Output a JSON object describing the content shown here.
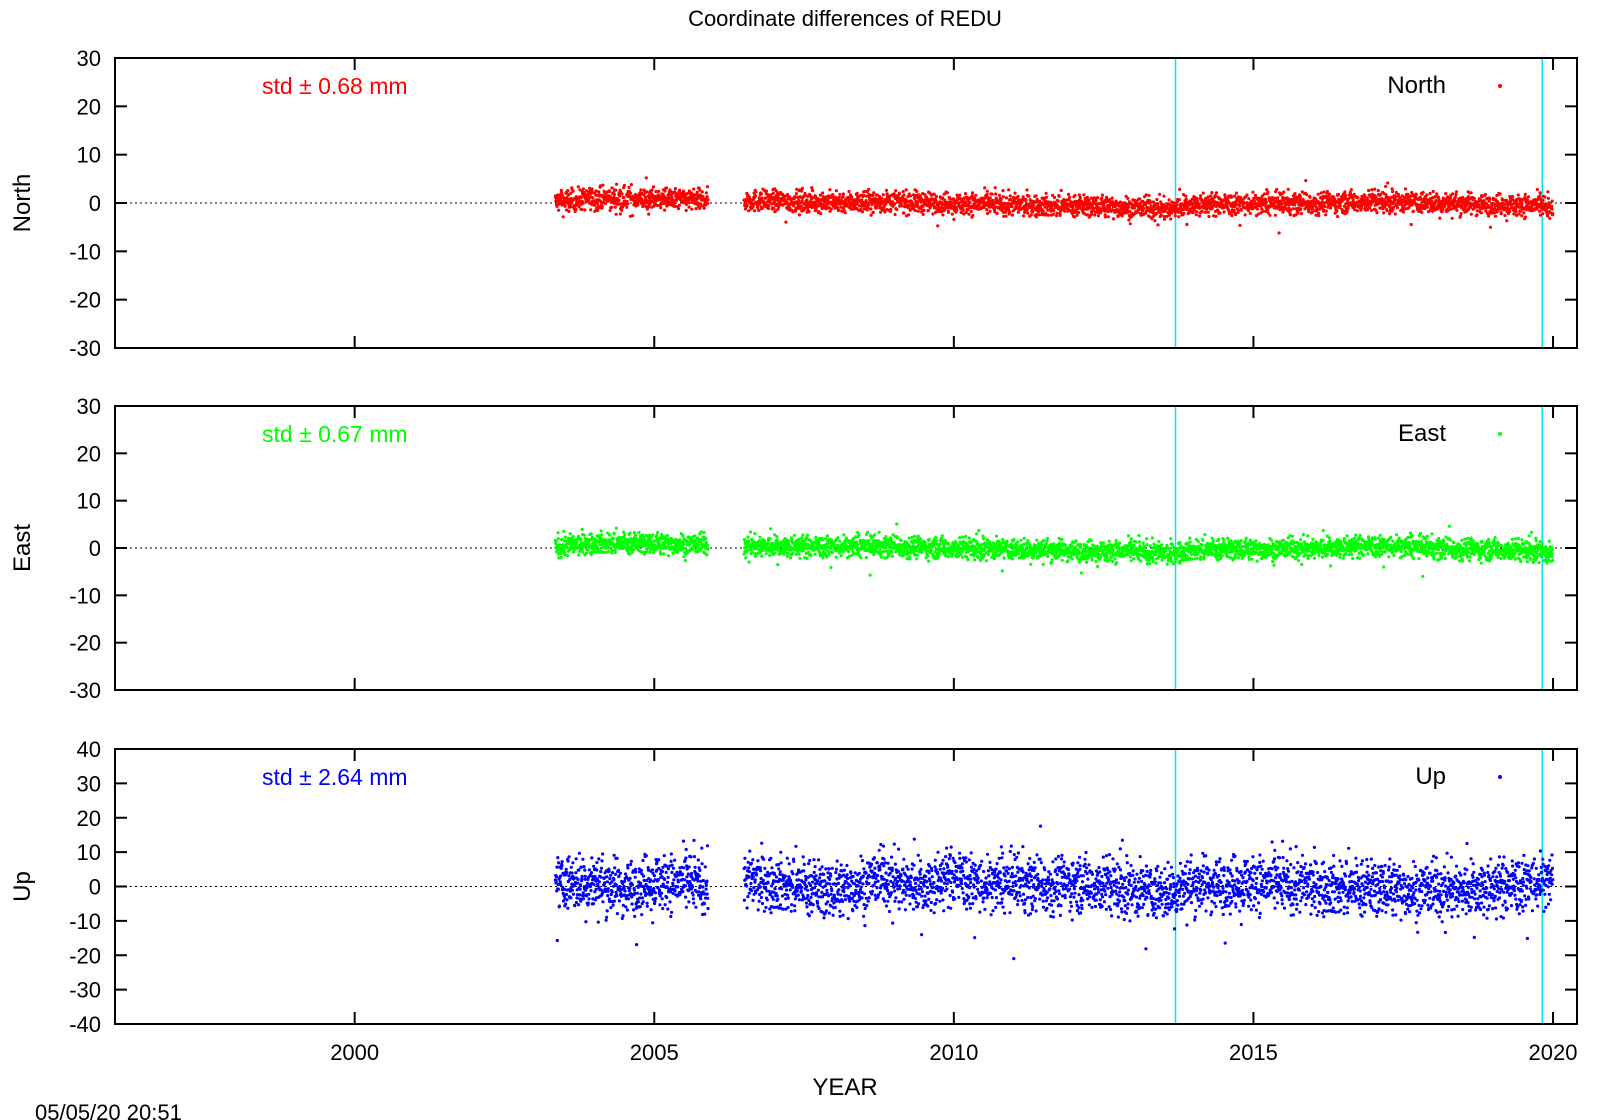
{
  "title": "Coordinate differences of REDU",
  "xlabel": "YEAR",
  "timestamp": "05/05/20 20:51",
  "colors": {
    "north": "#ff0000",
    "east": "#00ff00",
    "up": "#0000ff",
    "event_line": "#00e5ee",
    "axis": "#000000"
  },
  "chart_data": [
    {
      "type": "scatter",
      "name": "north",
      "ylabel": "North",
      "legend": "North",
      "legend_position": "top-right",
      "std_label": "std ± 0.68 mm",
      "color": "#ff0000",
      "xlim": [
        1996,
        2020.4
      ],
      "ylim": [
        -30,
        30
      ],
      "yticks": [
        30,
        20,
        10,
        0,
        -10,
        -20,
        -30
      ],
      "xticks": [
        2000,
        2005,
        2010,
        2015,
        2020
      ],
      "zero_line": "dotted",
      "event_lines_x": [
        2013.7,
        2019.82
      ],
      "data_spans_x": [
        [
          2003.35,
          2005.9
        ],
        [
          2006.5,
          2020.0
        ]
      ],
      "trend_points": [
        [
          2003.4,
          0.3
        ],
        [
          2004.0,
          1.0
        ],
        [
          2005.0,
          0.8
        ],
        [
          2005.9,
          0.6
        ],
        [
          2006.5,
          0.5
        ],
        [
          2008.0,
          0.2
        ],
        [
          2009.0,
          0.3
        ],
        [
          2010.0,
          -0.1
        ],
        [
          2011.0,
          -0.4
        ],
        [
          2012.0,
          -0.6
        ],
        [
          2013.0,
          -0.9
        ],
        [
          2013.6,
          -1.2
        ],
        [
          2014.0,
          -0.3
        ],
        [
          2015.0,
          -0.3
        ],
        [
          2016.0,
          0.0
        ],
        [
          2017.0,
          0.4
        ],
        [
          2018.0,
          0.0
        ],
        [
          2019.0,
          -0.3
        ],
        [
          2019.8,
          -0.6
        ],
        [
          2020.0,
          -1.6
        ]
      ],
      "spread_mm": 2.2
    },
    {
      "type": "scatter",
      "name": "east",
      "ylabel": "East",
      "legend": "East",
      "legend_position": "top-right",
      "std_label": "std ± 0.67 mm",
      "color": "#00ff00",
      "xlim": [
        1996,
        2020.4
      ],
      "ylim": [
        -30,
        30
      ],
      "yticks": [
        30,
        20,
        10,
        0,
        -10,
        -20,
        -30
      ],
      "xticks": [
        2000,
        2005,
        2010,
        2015,
        2020
      ],
      "zero_line": "dotted",
      "event_lines_x": [
        2013.7,
        2019.82
      ],
      "data_spans_x": [
        [
          2003.35,
          2005.9
        ],
        [
          2006.5,
          2020.0
        ]
      ],
      "trend_points": [
        [
          2003.4,
          0.3
        ],
        [
          2004.0,
          1.1
        ],
        [
          2005.0,
          0.9
        ],
        [
          2005.9,
          0.7
        ],
        [
          2006.5,
          0.5
        ],
        [
          2008.0,
          0.2
        ],
        [
          2009.0,
          0.4
        ],
        [
          2010.0,
          0.0
        ],
        [
          2011.0,
          -0.3
        ],
        [
          2012.0,
          -0.5
        ],
        [
          2013.0,
          -0.8
        ],
        [
          2013.6,
          -1.2
        ],
        [
          2014.0,
          -0.3
        ],
        [
          2015.0,
          -0.3
        ],
        [
          2016.0,
          0.0
        ],
        [
          2017.0,
          0.4
        ],
        [
          2018.0,
          0.0
        ],
        [
          2019.0,
          -0.3
        ],
        [
          2019.8,
          -0.6
        ],
        [
          2020.0,
          -1.6
        ]
      ],
      "spread_mm": 2.2
    },
    {
      "type": "scatter",
      "name": "up",
      "ylabel": "Up",
      "legend": "Up",
      "legend_position": "top-right",
      "std_label": "std ± 2.64 mm",
      "color": "#0000ff",
      "xlim": [
        1996,
        2020.4
      ],
      "ylim": [
        -40,
        40
      ],
      "yticks": [
        40,
        30,
        20,
        10,
        0,
        -10,
        -20,
        -30,
        -40
      ],
      "xticks": [
        2000,
        2005,
        2010,
        2015,
        2020
      ],
      "zero_line": "dotted",
      "event_lines_x": [
        2013.7,
        2019.82
      ],
      "data_spans_x": [
        [
          2003.35,
          2005.9
        ],
        [
          2006.5,
          2020.0
        ]
      ],
      "trend_points": [
        [
          2003.4,
          1.0
        ],
        [
          2004.0,
          1.0
        ],
        [
          2004.5,
          -0.5
        ],
        [
          2005.0,
          1.5
        ],
        [
          2005.9,
          0.5
        ],
        [
          2006.5,
          1.5
        ],
        [
          2007.0,
          1.0
        ],
        [
          2007.5,
          0.0
        ],
        [
          2008.0,
          -1.5
        ],
        [
          2008.8,
          2.5
        ],
        [
          2009.5,
          0.0
        ],
        [
          2010.0,
          3.0
        ],
        [
          2010.5,
          0.0
        ],
        [
          2011.0,
          1.0
        ],
        [
          2011.5,
          0.5
        ],
        [
          2012.0,
          1.0
        ],
        [
          2012.5,
          0.5
        ],
        [
          2013.0,
          -1.0
        ],
        [
          2013.5,
          -2.0
        ],
        [
          2014.0,
          0.5
        ],
        [
          2015.0,
          1.0
        ],
        [
          2016.0,
          0.0
        ],
        [
          2017.0,
          -0.5
        ],
        [
          2018.0,
          -1.0
        ],
        [
          2019.0,
          -0.5
        ],
        [
          2020.0,
          1.5
        ]
      ],
      "spread_mm": 8.0
    }
  ]
}
